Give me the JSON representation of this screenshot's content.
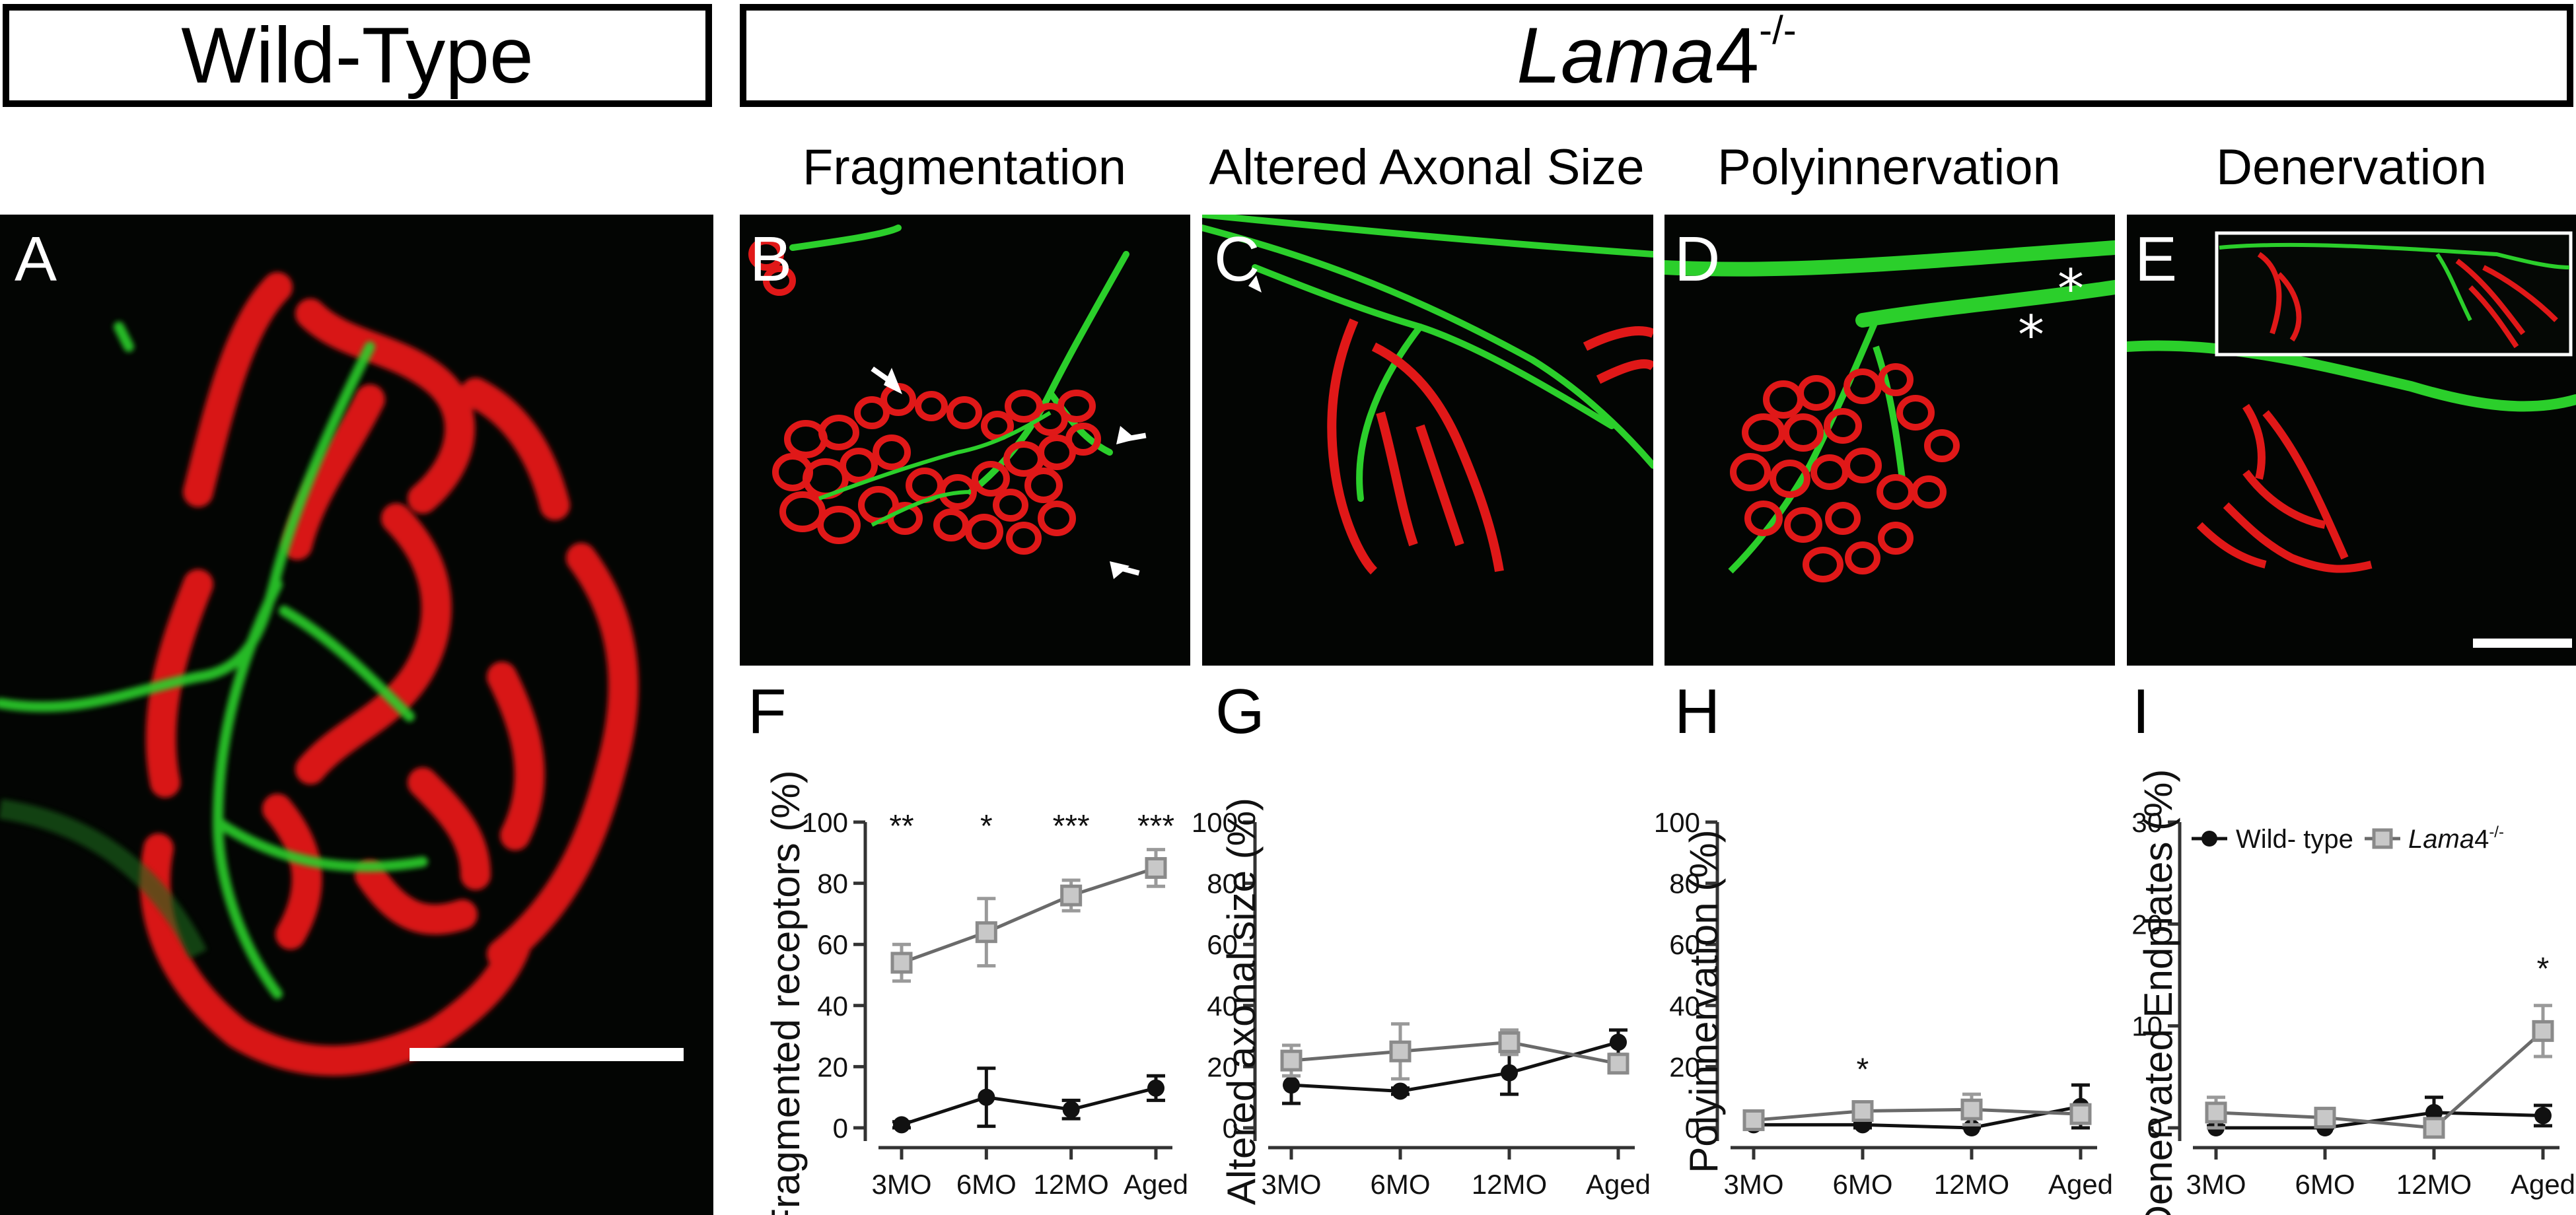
{
  "banners": {
    "wild_type": "Wild-Type",
    "lama4_prefix": "Lama",
    "lama4_num": "4",
    "lama4_sup": "-/-"
  },
  "section_titles": [
    "Fragmentation",
    "Altered Axonal Size",
    "Polyinnervation",
    "Denervation"
  ],
  "panel_letters": {
    "A": "A",
    "B": "B",
    "C": "C",
    "D": "D",
    "E": "E",
    "F": "F",
    "G": "G",
    "H": "H",
    "I": "I"
  },
  "colors": {
    "receptor_red": "#e01818",
    "axon_green": "#28c828",
    "wildtype": "#111111",
    "lama4": "#9a9a9a"
  },
  "legend": {
    "wildtype": "Wild- type",
    "lama4_prefix": "Lama",
    "lama4_num": "4",
    "lama4_sup": "-/-"
  },
  "chart_data": [
    {
      "id": "F",
      "type": "line",
      "ylabel": "Fragmented receptors (%)",
      "categories": [
        "3MO",
        "6MO",
        "12MO",
        "Aged"
      ],
      "yticks": [
        0,
        20,
        40,
        60,
        80,
        100
      ],
      "ylim": [
        0,
        100
      ],
      "series": [
        {
          "key": "wildtype",
          "values": [
            1,
            10,
            6,
            13
          ],
          "err": [
            1,
            9.5,
            3,
            4
          ]
        },
        {
          "key": "lama4",
          "values": [
            54,
            64,
            76,
            85
          ],
          "err": [
            6,
            11,
            5,
            6
          ]
        }
      ],
      "significance": [
        "**",
        "*",
        "***",
        "***"
      ]
    },
    {
      "id": "G",
      "type": "line",
      "ylabel": "Altered axonal size (%)",
      "categories": [
        "3MO",
        "6MO",
        "12MO",
        "Aged"
      ],
      "yticks": [
        0,
        20,
        40,
        60,
        80,
        100
      ],
      "ylim": [
        0,
        100
      ],
      "series": [
        {
          "key": "wildtype",
          "values": [
            14,
            12,
            18,
            28
          ],
          "err": [
            6,
            1,
            7,
            4
          ]
        },
        {
          "key": "lama4",
          "values": [
            22,
            25,
            28,
            21
          ],
          "err": [
            5,
            9,
            4,
            3
          ]
        }
      ],
      "significance": [
        "",
        "",
        "",
        ""
      ]
    },
    {
      "id": "H",
      "type": "line",
      "ylabel": "Polyinnervation (%)",
      "categories": [
        "3MO",
        "6MO",
        "12MO",
        "Aged"
      ],
      "yticks": [
        0,
        20,
        40,
        60,
        80,
        100
      ],
      "ylim": [
        0,
        100
      ],
      "series": [
        {
          "key": "wildtype",
          "values": [
            1,
            1,
            0,
            7
          ],
          "err": [
            1,
            1,
            0.5,
            7
          ]
        },
        {
          "key": "lama4",
          "values": [
            2.5,
            5.5,
            6,
            4.5
          ],
          "err": [
            1.5,
            1.5,
            5,
            3
          ]
        }
      ],
      "significance": [
        "",
        "*",
        "",
        ""
      ]
    },
    {
      "id": "I",
      "type": "line",
      "ylabel": "Denervated Endplates (%)",
      "categories": [
        "3MO",
        "6MO",
        "12MO",
        "Aged"
      ],
      "yticks": [
        0,
        10,
        20,
        30
      ],
      "ylim": [
        0,
        30
      ],
      "series": [
        {
          "key": "wildtype",
          "values": [
            0,
            0,
            1.5,
            1.2
          ],
          "err": [
            0.2,
            0.2,
            1.5,
            1
          ]
        },
        {
          "key": "lama4",
          "values": [
            1.5,
            1,
            0,
            9.5
          ],
          "err": [
            1.5,
            0.5,
            0.5,
            2.5
          ]
        }
      ],
      "significance": [
        "",
        "",
        "",
        "*"
      ]
    }
  ]
}
